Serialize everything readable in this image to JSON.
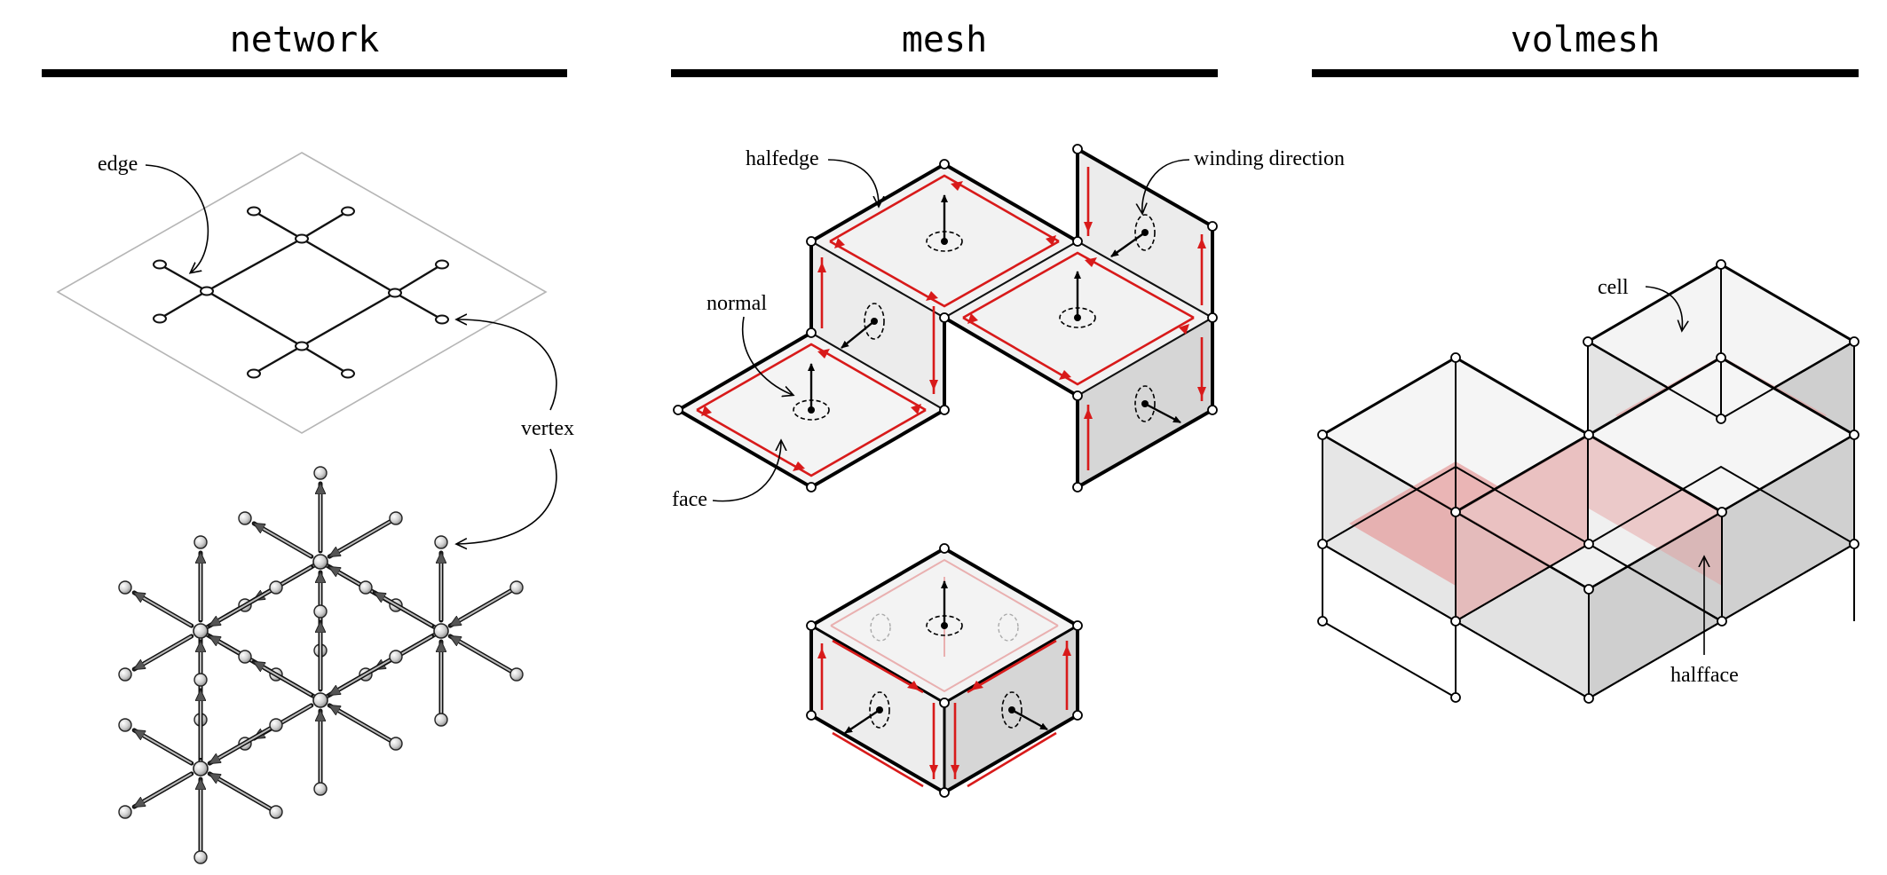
{
  "columns": {
    "network": "network",
    "mesh": "mesh",
    "volmesh": "volmesh"
  },
  "labels": {
    "edge": "edge",
    "vertex": "vertex",
    "halfedge": "halfedge",
    "winding_direction": "winding direction",
    "normal": "normal",
    "face": "face",
    "cell": "cell",
    "halfface": "halfface"
  },
  "colors": {
    "ink": "#000000",
    "arrow_red": "#d81a1a",
    "face_fill": "#f2f2f2",
    "face_shade": "#d6d6d6",
    "halfface_fill": "#e59a9a",
    "node_fill": "#cfcfcf"
  }
}
